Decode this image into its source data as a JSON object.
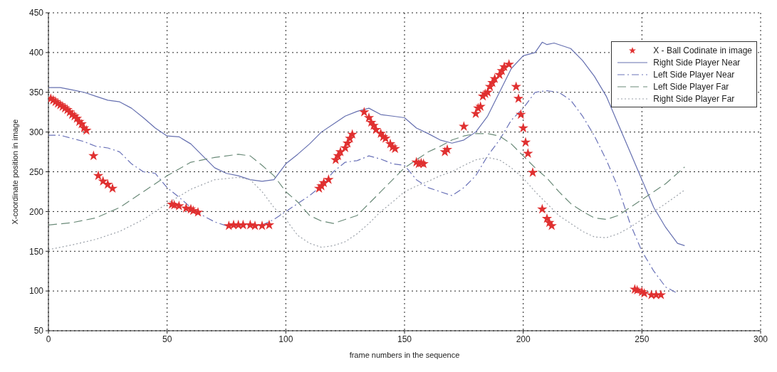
{
  "chart_data": {
    "type": "line",
    "xlabel": "frame numbers in the sequence",
    "ylabel": "X-coordinate position in image",
    "xlim": [
      0,
      300
    ],
    "xticks": [
      0,
      50,
      100,
      150,
      200,
      250,
      300
    ],
    "ylim": [
      50,
      450
    ],
    "yticks": [
      50,
      100,
      150,
      200,
      250,
      300,
      350,
      400,
      450
    ],
    "grid": true,
    "legend": "top right",
    "series": [
      {
        "name": "X - Ball Codinate in image",
        "type": "scatter",
        "marker": "star",
        "color": "#e03030",
        "x": [
          1,
          2,
          3,
          4,
          5,
          6,
          7,
          8,
          9,
          10,
          11,
          12,
          13,
          14,
          15,
          16,
          19,
          21,
          23,
          25,
          27,
          52,
          53,
          55,
          58,
          60,
          61,
          63,
          76,
          78,
          80,
          82,
          85,
          87,
          90,
          93,
          114,
          115,
          116,
          118,
          121,
          122,
          123,
          125,
          126,
          127,
          128,
          133,
          135,
          136,
          137,
          138,
          140,
          141,
          142,
          144,
          145,
          146,
          155,
          156,
          157,
          158,
          167,
          168,
          175,
          180,
          181,
          182,
          183,
          184,
          185,
          186,
          187,
          188,
          190,
          191,
          192,
          194,
          197,
          198,
          199,
          200,
          201,
          202,
          204,
          208,
          210,
          211,
          212,
          247,
          248,
          250,
          251,
          254,
          256,
          258
        ],
        "values": [
          342,
          340,
          338,
          336,
          334,
          332,
          330,
          328,
          325,
          322,
          320,
          317,
          313,
          310,
          305,
          302,
          270,
          245,
          238,
          234,
          229,
          209,
          208,
          207,
          204,
          203,
          201,
          199,
          182,
          183,
          183,
          183,
          183,
          182,
          182,
          183,
          229,
          232,
          236,
          240,
          265,
          270,
          275,
          280,
          286,
          292,
          297,
          325,
          318,
          312,
          308,
          303,
          298,
          294,
          292,
          285,
          281,
          279,
          262,
          260,
          261,
          260,
          275,
          278,
          307,
          323,
          330,
          332,
          345,
          348,
          350,
          357,
          362,
          367,
          372,
          377,
          382,
          385,
          357,
          342,
          322,
          305,
          287,
          273,
          249,
          203,
          191,
          186,
          182,
          102,
          101,
          99,
          97,
          95,
          95,
          95
        ]
      },
      {
        "name": "Right Side Player Near",
        "line_style": "solid",
        "color": "#6670b0",
        "x": [
          0,
          5,
          10,
          15,
          20,
          25,
          30,
          35,
          40,
          45,
          50,
          55,
          60,
          65,
          70,
          75,
          80,
          85,
          90,
          95,
          100,
          105,
          110,
          115,
          120,
          125,
          130,
          135,
          140,
          145,
          150,
          155,
          160,
          165,
          170,
          175,
          180,
          185,
          190,
          195,
          200,
          205,
          208,
          210,
          213,
          220,
          225,
          230,
          235,
          240,
          245,
          250,
          255,
          260,
          265,
          268
        ],
        "values": [
          356,
          356,
          353,
          350,
          345,
          340,
          338,
          330,
          318,
          305,
          295,
          294,
          285,
          270,
          255,
          248,
          245,
          240,
          238,
          240,
          260,
          272,
          285,
          300,
          310,
          320,
          326,
          330,
          322,
          320,
          318,
          305,
          298,
          290,
          286,
          290,
          300,
          320,
          350,
          380,
          396,
          400,
          413,
          410,
          412,
          405,
          390,
          370,
          345,
          310,
          275,
          240,
          205,
          180,
          160,
          157
        ]
      },
      {
        "name": "Left Side Player Near",
        "line_style": "dashdot",
        "color": "#6a72b8",
        "x": [
          0,
          5,
          10,
          15,
          20,
          25,
          30,
          35,
          40,
          45,
          50,
          55,
          60,
          65,
          70,
          75,
          80,
          85,
          90,
          95,
          100,
          105,
          110,
          115,
          120,
          125,
          130,
          135,
          140,
          145,
          150,
          155,
          160,
          165,
          170,
          175,
          180,
          185,
          190,
          195,
          200,
          205,
          210,
          215,
          220,
          225,
          230,
          235,
          240,
          245,
          250,
          255,
          260,
          265
        ],
        "values": [
          296,
          296,
          292,
          288,
          282,
          280,
          275,
          260,
          250,
          248,
          230,
          218,
          205,
          195,
          187,
          182,
          182,
          182,
          183,
          190,
          200,
          210,
          220,
          232,
          250,
          262,
          264,
          270,
          266,
          260,
          258,
          240,
          230,
          225,
          220,
          230,
          245,
          270,
          290,
          315,
          330,
          350,
          352,
          350,
          340,
          320,
          295,
          265,
          230,
          185,
          150,
          125,
          105,
          97
        ]
      },
      {
        "name": "Left Side Player Far",
        "line_style": "dashed",
        "color": "#6a8a78",
        "x": [
          0,
          10,
          20,
          30,
          40,
          50,
          60,
          70,
          80,
          85,
          90,
          95,
          100,
          105,
          110,
          115,
          120,
          125,
          130,
          135,
          140,
          145,
          150,
          155,
          160,
          165,
          170,
          175,
          180,
          185,
          190,
          195,
          200,
          205,
          210,
          215,
          220,
          225,
          230,
          235,
          240,
          245,
          250,
          255,
          260,
          268
        ],
        "values": [
          183,
          186,
          192,
          205,
          225,
          245,
          262,
          268,
          272,
          270,
          258,
          245,
          225,
          212,
          195,
          188,
          185,
          190,
          195,
          210,
          225,
          240,
          255,
          265,
          275,
          282,
          290,
          295,
          298,
          298,
          295,
          285,
          270,
          255,
          242,
          225,
          210,
          200,
          192,
          190,
          195,
          205,
          215,
          225,
          235,
          256
        ]
      },
      {
        "name": "Right Side Player Far",
        "line_style": "dotted",
        "color": "#9aa0a8",
        "x": [
          0,
          10,
          20,
          30,
          40,
          50,
          60,
          70,
          80,
          85,
          90,
          95,
          100,
          105,
          110,
          115,
          120,
          125,
          130,
          135,
          140,
          145,
          150,
          155,
          160,
          165,
          170,
          175,
          180,
          185,
          190,
          195,
          200,
          205,
          210,
          215,
          220,
          225,
          230,
          235,
          240,
          245,
          250,
          255,
          260,
          268
        ],
        "values": [
          152,
          158,
          165,
          175,
          190,
          210,
          228,
          240,
          243,
          240,
          225,
          205,
          190,
          170,
          160,
          155,
          157,
          162,
          172,
          185,
          200,
          212,
          225,
          232,
          238,
          245,
          250,
          258,
          265,
          268,
          265,
          255,
          242,
          225,
          210,
          195,
          185,
          175,
          168,
          167,
          172,
          180,
          190,
          200,
          210,
          227
        ]
      }
    ]
  }
}
